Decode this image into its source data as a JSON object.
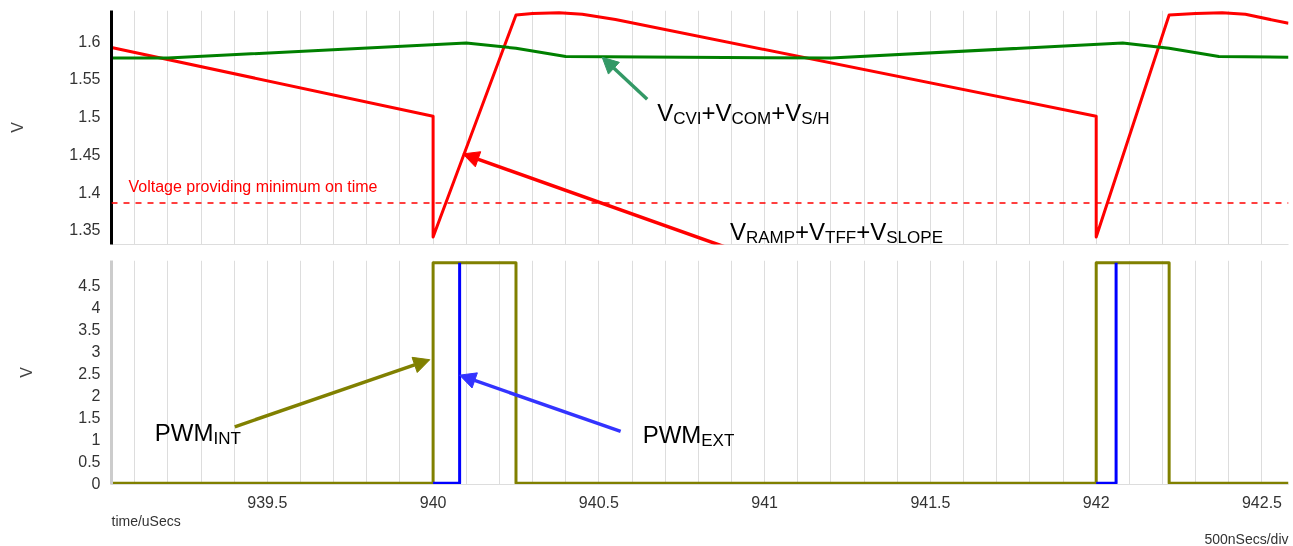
{
  "chart_data": [
    {
      "type": "line",
      "ylabel": "V",
      "xlim": [
        939.03,
        942.58
      ],
      "ylim": [
        1.33,
        1.64
      ],
      "xticks": [
        {
          "value": 939.1,
          "label": null
        },
        {
          "value": 939.2,
          "label": null
        },
        {
          "value": 939.3,
          "label": null
        },
        {
          "value": 939.4,
          "label": null
        },
        939.5,
        {
          "value": 939.6,
          "label": null
        },
        {
          "value": 939.7,
          "label": null
        },
        {
          "value": 939.8,
          "label": null
        },
        {
          "value": 939.9,
          "label": null
        },
        940,
        {
          "value": 940.1,
          "label": null
        },
        {
          "value": 940.2,
          "label": null
        },
        {
          "value": 940.3,
          "label": null
        },
        {
          "value": 940.4,
          "label": null
        },
        940.5,
        {
          "value": 940.6,
          "label": null
        },
        {
          "value": 940.7,
          "label": null
        },
        {
          "value": 940.8,
          "label": null
        },
        {
          "value": 940.9,
          "label": null
        },
        941,
        {
          "value": 941.1,
          "label": null
        },
        {
          "value": 941.2,
          "label": null
        },
        {
          "value": 941.3,
          "label": null
        },
        {
          "value": 941.4,
          "label": null
        },
        941.5,
        {
          "value": 941.6,
          "label": null
        },
        {
          "value": 941.7,
          "label": null
        },
        {
          "value": 941.8,
          "label": null
        },
        {
          "value": 941.9,
          "label": null
        },
        942,
        {
          "value": 942.1,
          "label": null
        },
        {
          "value": 942.2,
          "label": null
        },
        {
          "value": 942.3,
          "label": null
        },
        {
          "value": 942.4,
          "label": null
        },
        942.5
      ],
      "yticks": [
        1.35,
        1.4,
        1.45,
        1.5,
        1.55,
        1.6
      ],
      "grid": "x",
      "tick_labels": "y",
      "line_style": "solid",
      "marker": "none",
      "series": [
        {
          "color": "#ff0000",
          "x": [
            939.03,
            940.0,
            940.0,
            940.25,
            940.3,
            940.38,
            940.45,
            940.55,
            942.0,
            942.0,
            942.22,
            942.3,
            942.38,
            942.45,
            942.58
          ],
          "values": [
            1.591,
            1.5,
            1.34,
            1.634,
            1.636,
            1.637,
            1.635,
            1.628,
            1.5,
            1.34,
            1.634,
            1.636,
            1.637,
            1.635,
            1.623
          ]
        },
        {
          "color": "#008000",
          "x": [
            939.03,
            939.2,
            940.1,
            940.25,
            940.4,
            941.2,
            942.08,
            942.22,
            942.37,
            942.58
          ],
          "values": [
            1.577,
            1.577,
            1.597,
            1.59,
            1.579,
            1.577,
            1.597,
            1.59,
            1.579,
            1.578
          ]
        }
      ],
      "ref_lines": [
        {
          "axis": "y",
          "value": 1.385,
          "label": "Voltage providing minimum on time",
          "color": "#ff0000",
          "line_style": "dashed"
        }
      ],
      "annotations": [
        {
          "text": "V$_{CVI}$+V$_{COM}$+V$_{S/H}$",
          "x": 940.51,
          "y": 1.578
        },
        {
          "text": "V$_{RAMP}$+V$_{TFF}$+V$_{SLOPE}$",
          "x": 940.09,
          "y": 1.45
        }
      ]
    },
    {
      "type": "line",
      "ylabel": "V",
      "xlabel": "time/uSecs",
      "xlim": [
        939.03,
        942.58
      ],
      "ylim": [
        -0.03,
        5.05
      ],
      "xticks": [
        {
          "value": 939.1,
          "label": null
        },
        {
          "value": 939.2,
          "label": null
        },
        {
          "value": 939.3,
          "label": null
        },
        {
          "value": 939.4,
          "label": null
        },
        939.5,
        {
          "value": 939.6,
          "label": null
        },
        {
          "value": 939.7,
          "label": null
        },
        {
          "value": 939.8,
          "label": null
        },
        {
          "value": 939.9,
          "label": null
        },
        940,
        {
          "value": 940.1,
          "label": null
        },
        {
          "value": 940.2,
          "label": null
        },
        {
          "value": 940.3,
          "label": null
        },
        {
          "value": 940.4,
          "label": null
        },
        940.5,
        {
          "value": 940.6,
          "label": null
        },
        {
          "value": 940.7,
          "label": null
        },
        {
          "value": 940.8,
          "label": null
        },
        {
          "value": 940.9,
          "label": null
        },
        941,
        {
          "value": 941.1,
          "label": null
        },
        {
          "value": 941.2,
          "label": null
        },
        {
          "value": 941.3,
          "label": null
        },
        {
          "value": 941.4,
          "label": null
        },
        941.5,
        {
          "value": 941.6,
          "label": null
        },
        {
          "value": 941.7,
          "label": null
        },
        {
          "value": 941.8,
          "label": null
        },
        {
          "value": 941.9,
          "label": null
        },
        942,
        {
          "value": 942.1,
          "label": null
        },
        {
          "value": 942.2,
          "label": null
        },
        {
          "value": 942.3,
          "label": null
        },
        {
          "value": 942.4,
          "label": null
        },
        942.5
      ],
      "yticks": [
        0,
        0.5,
        1,
        1.5,
        2,
        2.5,
        3,
        3.5,
        4,
        4.5
      ],
      "grid": "x",
      "line_style": "solid",
      "marker": "none",
      "series": [
        {
          "color": "#808000",
          "x": [
            939.03,
            940.0,
            940.0,
            940.25,
            940.25,
            942.0,
            942.0,
            942.22,
            942.22,
            942.58
          ],
          "values": [
            0,
            0,
            5,
            5,
            0,
            0,
            5,
            5,
            0,
            0
          ]
        },
        {
          "color": "#0000ff",
          "x": [
            940.0,
            940.08,
            940.08,
            null,
            942.0,
            942.06,
            942.06
          ],
          "values": [
            0,
            0,
            5,
            null,
            0,
            0,
            5
          ]
        }
      ],
      "annotations": [
        "500nSecs/div",
        {
          "text": "PWM$_{INT}$",
          "x": 939.99,
          "y": 2.8
        },
        {
          "text": "PWM$_{EXT}$",
          "x": 940.08,
          "y": 2.45
        }
      ]
    }
  ]
}
